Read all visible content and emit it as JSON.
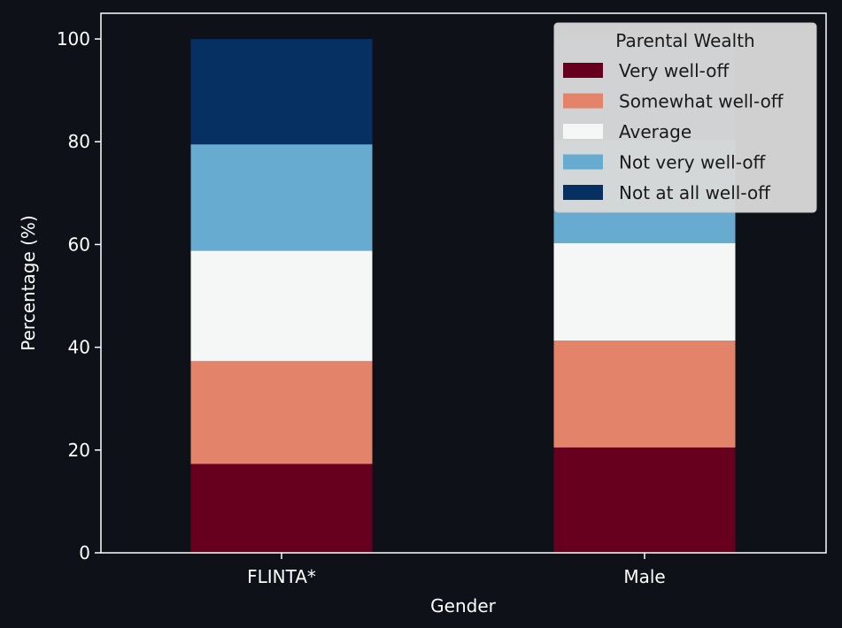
{
  "colors": {
    "background": "#0e1117",
    "axis": "#ffffff",
    "text": "#ffffff",
    "legend_bg": "#d4d4d4",
    "legend_text": "#1a1a1a"
  },
  "chart_data": {
    "type": "bar",
    "stacked": true,
    "title": "",
    "xlabel": "Gender",
    "ylabel": "Percentage (%)",
    "ylim": [
      0,
      105
    ],
    "yticks": [
      0,
      20,
      40,
      60,
      80,
      100
    ],
    "ytick_labels": [
      "0",
      "20",
      "40",
      "60",
      "80",
      "100"
    ],
    "categories": [
      "FLINTA*",
      "Male"
    ],
    "legend_title": "Parental Wealth",
    "legend_position": "top-right",
    "series": [
      {
        "name": "Very well-off",
        "color": "#67001f",
        "values": [
          17.3,
          20.5
        ]
      },
      {
        "name": "Somewhat well-off",
        "color": "#e3846a",
        "values": [
          20.0,
          20.8
        ]
      },
      {
        "name": "Average",
        "color": "#f5f6f6",
        "values": [
          21.5,
          19.0
        ]
      },
      {
        "name": "Not very well-off",
        "color": "#67abd1",
        "values": [
          20.7,
          20.0
        ]
      },
      {
        "name": "Not at all well-off",
        "color": "#053061",
        "values": [
          20.5,
          19.7
        ]
      }
    ]
  }
}
